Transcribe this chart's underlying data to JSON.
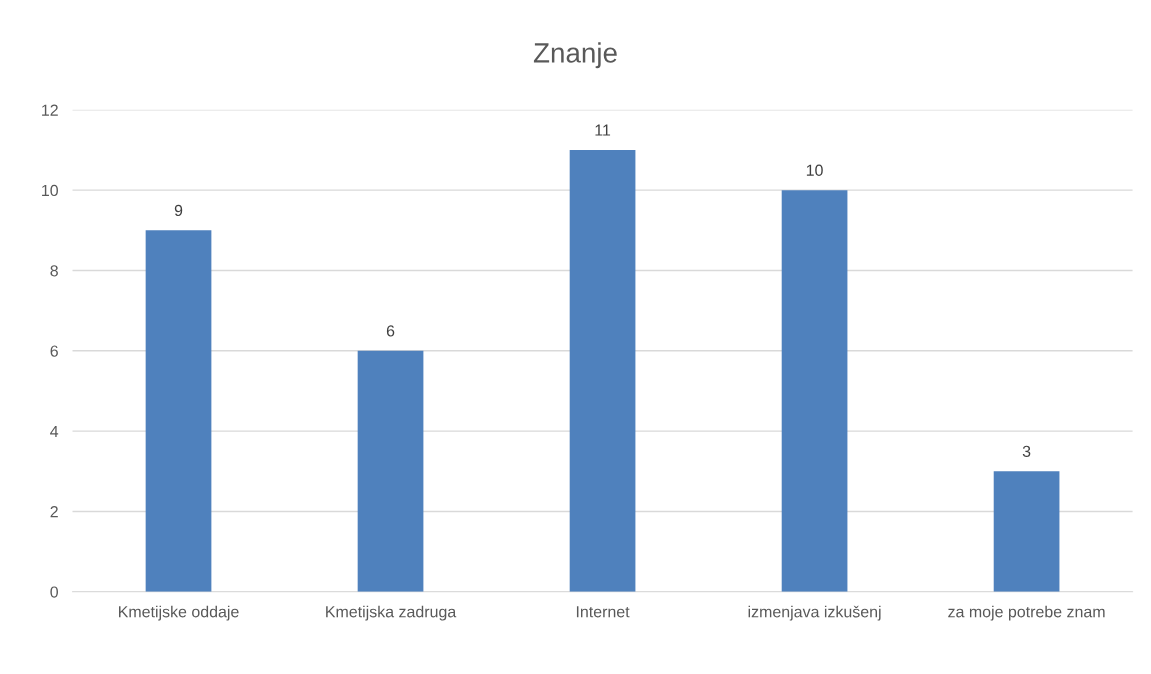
{
  "chart_data": {
    "type": "bar",
    "title": "Znanje",
    "categories": [
      "Kmetijske oddaje",
      "Kmetijska zadruga",
      "Internet",
      "izmenjava izkušenj",
      "za moje potrebe znam"
    ],
    "values": [
      9,
      6,
      11,
      10,
      3
    ],
    "color": "#4f81bd",
    "ylim": [
      0,
      12
    ],
    "yticks": [
      0,
      2,
      4,
      6,
      8,
      10,
      12
    ],
    "grid": "y",
    "data_labels": true,
    "legend": false
  }
}
